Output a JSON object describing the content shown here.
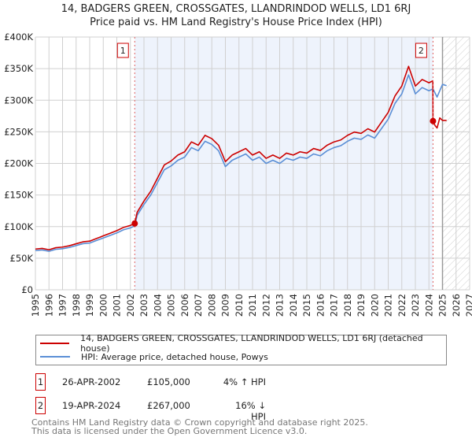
{
  "title_line1": "14, BADGERS GREEN, CROSSGATES, LLANDRINDOD WELLS, LD1 6RJ",
  "title_line2": "Price paid vs. HM Land Registry's House Price Index (HPI)",
  "colors": {
    "property": "#cc0000",
    "hpi": "#5b8fd6",
    "shade": "#eef3fc"
  },
  "chart_data": {
    "type": "line",
    "title": "Price paid vs. HM Land Registry's House Price Index (HPI)",
    "xlim": [
      1995,
      2027
    ],
    "ylim": [
      0,
      400000
    ],
    "x_ticks": [
      "1995",
      "1996",
      "1997",
      "1998",
      "1999",
      "2000",
      "2001",
      "2002",
      "2003",
      "2004",
      "2005",
      "2006",
      "2007",
      "2008",
      "2009",
      "2010",
      "2011",
      "2012",
      "2013",
      "2014",
      "2015",
      "2016",
      "2017",
      "2018",
      "2019",
      "2020",
      "2021",
      "2022",
      "2023",
      "2024",
      "2025",
      "2026",
      "2027"
    ],
    "y_ticks": [
      {
        "v": 0,
        "label": "£0"
      },
      {
        "v": 50000,
        "label": "£50K"
      },
      {
        "v": 100000,
        "label": "£100K"
      },
      {
        "v": 150000,
        "label": "£150K"
      },
      {
        "v": 200000,
        "label": "£200K"
      },
      {
        "v": 250000,
        "label": "£250K"
      },
      {
        "v": 300000,
        "label": "£300K"
      },
      {
        "v": 350000,
        "label": "£350K"
      },
      {
        "v": 400000,
        "label": "£400K"
      }
    ],
    "forecast_start": 2025.0,
    "series": [
      {
        "name": "HPI",
        "x": [
          1995,
          1995.5,
          1996,
          1996.5,
          1997,
          1997.5,
          1998,
          1998.5,
          1999,
          1999.5,
          2000,
          2000.5,
          2001,
          2001.5,
          2002,
          2002.32,
          2002.5,
          2003,
          2003.5,
          2004,
          2004.5,
          2005,
          2005.5,
          2006,
          2006.5,
          2007,
          2007.5,
          2008,
          2008.5,
          2009,
          2009.5,
          2010,
          2010.5,
          2011,
          2011.5,
          2012,
          2012.5,
          2013,
          2013.5,
          2014,
          2014.5,
          2015,
          2015.5,
          2016,
          2016.5,
          2017,
          2017.5,
          2018,
          2018.5,
          2019,
          2019.5,
          2020,
          2020.5,
          2021,
          2021.5,
          2022,
          2022.5,
          2023,
          2023.5,
          2024,
          2024.3,
          2024.6,
          2025,
          2025.3
        ],
        "y": [
          62,
          63,
          61,
          64,
          65,
          67,
          70,
          73,
          74,
          78,
          82,
          86,
          90,
          95,
          98,
          101,
          118,
          135,
          150,
          170,
          190,
          196,
          205,
          210,
          225,
          220,
          235,
          230,
          220,
          195,
          205,
          210,
          215,
          205,
          210,
          200,
          205,
          200,
          208,
          205,
          210,
          208,
          215,
          212,
          220,
          225,
          228,
          235,
          240,
          238,
          245,
          240,
          255,
          270,
          295,
          310,
          340,
          310,
          320,
          315,
          318,
          305,
          325,
          323
        ]
      },
      {
        "name": "Property",
        "x": [
          1995,
          1995.5,
          1996,
          1996.5,
          1997,
          1997.5,
          1998,
          1998.5,
          1999,
          1999.5,
          2000,
          2000.5,
          2001,
          2001.5,
          2002,
          2002.32,
          2002.5,
          2003,
          2003.5,
          2004,
          2004.5,
          2005,
          2005.5,
          2006,
          2006.5,
          2007,
          2007.5,
          2008,
          2008.5,
          2009,
          2009.5,
          2010,
          2010.5,
          2011,
          2011.5,
          2012,
          2012.5,
          2013,
          2013.5,
          2014,
          2014.5,
          2015,
          2015.5,
          2016,
          2016.5,
          2017,
          2017.5,
          2018,
          2018.5,
          2019,
          2019.5,
          2020,
          2020.5,
          2021,
          2021.5,
          2022,
          2022.5,
          2023,
          2023.5,
          2024,
          2024.29,
          2024.3,
          2024.45,
          2024.6,
          2024.8,
          2025,
          2025.3
        ],
        "y": [
          64.5,
          65.5,
          63.4,
          66.6,
          67.6,
          69.7,
          72.8,
          75.9,
          77,
          81.1,
          85.3,
          89.4,
          93.6,
          98.8,
          101.9,
          105,
          122.7,
          140.4,
          156,
          176.8,
          197.6,
          203.8,
          213.2,
          218.4,
          234,
          228.8,
          244.4,
          239.2,
          228.8,
          202.8,
          213.2,
          218.4,
          223.6,
          213.2,
          218.4,
          208,
          213.2,
          208,
          216.3,
          213.2,
          218.4,
          216.3,
          223.6,
          220.5,
          228.8,
          234,
          237.1,
          244.4,
          249.6,
          247.5,
          254.8,
          249.6,
          265.2,
          280.8,
          306.8,
          322.4,
          353.6,
          322.4,
          332.8,
          327.6,
          330.7,
          267,
          260,
          256,
          272,
          268,
          268
        ]
      }
    ],
    "y_units": "thousands GBP",
    "sales": [
      {
        "n": "1",
        "x": 2002.32,
        "y": 105
      },
      {
        "n": "2",
        "x": 2024.3,
        "y": 267
      }
    ]
  },
  "legend": {
    "property": "14, BADGERS GREEN, CROSSGATES, LLANDRINDOD WELLS, LD1 6RJ (detached house)",
    "hpi": "HPI: Average price, detached house, Powys"
  },
  "transactions": [
    {
      "n": "1",
      "date": "26-APR-2002",
      "price": "£105,000",
      "hpi": "4% ↑ HPI"
    },
    {
      "n": "2",
      "date": "19-APR-2024",
      "price": "£267,000",
      "hpi": "16% ↓ HPI"
    }
  ],
  "footer_line1": "Contains HM Land Registry data © Crown copyright and database right 2025.",
  "footer_line2": "This data is licensed under the Open Government Licence v3.0."
}
